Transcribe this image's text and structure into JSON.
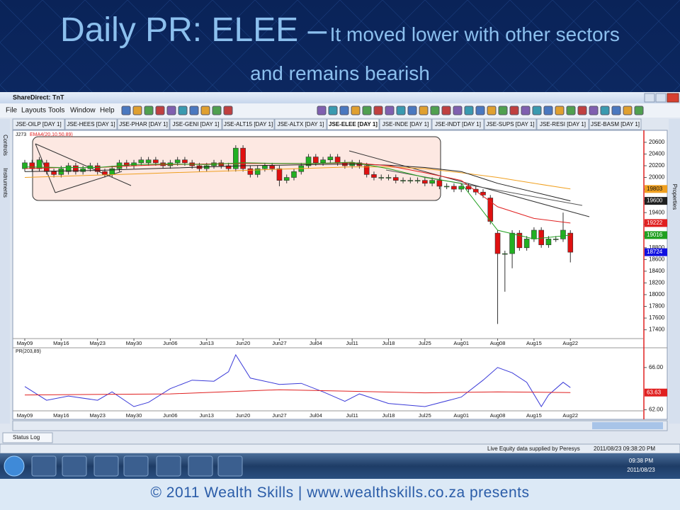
{
  "slide": {
    "title": "Daily PR: ELEE –",
    "headline": "It moved lower with other sectors and remains bearish",
    "footer": "© 2011 Wealth Skills | www.wealthskills.co.za presents"
  },
  "window": {
    "title": "ShareDirect: TnT",
    "menu": [
      "File",
      "Layouts",
      "Tools",
      "Window",
      "Help"
    ],
    "tabs": [
      "JSE-OILP [DAY 1]",
      "JSE-HEES [DAY 1]",
      "JSE-PHAR [DAY 1]",
      "JSE-GENI [DAY 1]",
      "JSE-ALT15 [DAY 1]",
      "JSE-ALTX [DAY 1]",
      "JSE-ELEE [DAY 1]",
      "JSE-INDE [DAY 1]",
      "JSE-INDT [DAY 1]",
      "JSE-SUPS [DAY 1]",
      "JSE-RESI [DAY 1]",
      "JSE-BASM [DAY 1]"
    ],
    "side_tabs": [
      "Controls",
      "Instruments"
    ],
    "right_tab": "Properties",
    "status_tab": "Status Log",
    "status_text": "Live Equity data supplied by Peresys",
    "status_time": "2011/08/23 09:38:20 PM"
  },
  "taskbar": {
    "time": "09:38 PM",
    "date": "2011/08/23"
  },
  "chart_data": [
    {
      "type": "candlestick",
      "label": "J273",
      "indicator": "EMA4(20,10,50,89)",
      "categories": [
        "May09",
        null,
        null,
        null,
        null,
        "May16",
        null,
        null,
        null,
        null,
        "May23",
        null,
        null,
        null,
        null,
        "May30",
        null,
        null,
        null,
        null,
        "Jun06",
        null,
        null,
        null,
        null,
        "Jun13",
        null,
        null,
        null,
        null,
        "Jun20",
        null,
        null,
        null,
        null,
        "Jun27",
        null,
        null,
        null,
        null,
        "Jul04",
        null,
        null,
        null,
        null,
        "Jul11",
        null,
        null,
        null,
        null,
        "Jul18",
        null,
        null,
        null,
        null,
        "Jul25",
        null,
        null,
        null,
        null,
        "Aug01",
        null,
        null,
        null,
        null,
        "Aug08",
        null,
        null,
        null,
        null,
        "Aug15",
        null,
        null,
        null,
        null,
        "Aug22"
      ],
      "open": [
        20150,
        20250,
        20150,
        20250,
        20100,
        20050,
        20100,
        20200,
        20100,
        20150,
        20200,
        20100,
        20050,
        20150,
        20250,
        20200,
        20250,
        20250,
        20300,
        20250,
        20200,
        20250,
        20300,
        20250,
        20200,
        20150,
        20200,
        20250,
        20200,
        20150,
        20500,
        20150,
        20050,
        20150,
        20200,
        20150,
        19950,
        20000,
        20100,
        20200,
        20350,
        20250,
        20300,
        20350,
        20250,
        20200,
        20250,
        20200,
        20050,
        20000,
        20000,
        20000,
        19950,
        19950,
        19950,
        19950,
        19900,
        19950,
        19850,
        19850,
        19800,
        19850,
        19800,
        19750,
        19650,
        19050,
        18700,
        18700,
        19050,
        18800,
        18950,
        19100,
        18850,
        18950,
        18950,
        19050
      ],
      "high": [
        20300,
        20300,
        20350,
        20300,
        20150,
        20200,
        20250,
        20250,
        20200,
        20250,
        20250,
        20150,
        20200,
        20300,
        20300,
        20300,
        20350,
        20350,
        20350,
        20300,
        20300,
        20350,
        20350,
        20300,
        20250,
        20250,
        20300,
        20300,
        20250,
        20550,
        20550,
        20200,
        20200,
        20250,
        20250,
        20200,
        20050,
        20150,
        20250,
        20400,
        20400,
        20350,
        20400,
        20400,
        20300,
        20300,
        20300,
        20250,
        20100,
        20050,
        20050,
        20050,
        20000,
        20000,
        20000,
        20000,
        20000,
        20000,
        19900,
        19900,
        19900,
        19900,
        19850,
        19800,
        19700,
        19100,
        18750,
        19100,
        19100,
        19000,
        19150,
        19150,
        19000,
        19000,
        19400,
        19100
      ],
      "low": [
        20100,
        20100,
        20100,
        20050,
        20000,
        20000,
        20050,
        20050,
        20050,
        20100,
        20050,
        20000,
        20000,
        20100,
        20150,
        20150,
        20200,
        20200,
        20200,
        20150,
        20150,
        20200,
        20200,
        20150,
        20100,
        20100,
        20150,
        20150,
        20100,
        20100,
        20100,
        20000,
        20000,
        20100,
        20100,
        19850,
        19900,
        19950,
        20050,
        20150,
        20200,
        20200,
        20250,
        20200,
        20150,
        20150,
        20150,
        20000,
        19950,
        19950,
        19950,
        19900,
        19900,
        19900,
        19900,
        19850,
        19850,
        19800,
        19800,
        19750,
        19750,
        19750,
        19700,
        19650,
        19200,
        17500,
        18050,
        18450,
        18750,
        18750,
        18900,
        18800,
        18800,
        18900,
        18900,
        18550
      ],
      "close": [
        20250,
        20150,
        20300,
        20100,
        20050,
        20150,
        20200,
        20100,
        20150,
        20200,
        20100,
        20050,
        20150,
        20250,
        20200,
        20250,
        20300,
        20300,
        20250,
        20200,
        20250,
        20300,
        20250,
        20200,
        20150,
        20200,
        20250,
        20200,
        20150,
        20500,
        20150,
        20050,
        20150,
        20200,
        20150,
        19950,
        20000,
        20100,
        20200,
        20350,
        20250,
        20300,
        20350,
        20250,
        20200,
        20250,
        20200,
        20050,
        20000,
        20000,
        20000,
        19950,
        19950,
        19950,
        19950,
        19900,
        19950,
        19850,
        19850,
        19800,
        19850,
        19800,
        19750,
        19700,
        19250,
        18700,
        18700,
        19050,
        18800,
        18950,
        19100,
        18850,
        18950,
        18950,
        19100,
        18724
      ],
      "up_color": "#22b022",
      "down_color": "#e01010",
      "close_label_color": "#1010e0",
      "overlays": [
        {
          "color": "#f0a020",
          "x": [
            0,
            5,
            10,
            15,
            20,
            25,
            30,
            35,
            40,
            45,
            50,
            55,
            60,
            65,
            70,
            75
          ],
          "values": [
            20000,
            20020,
            20040,
            20060,
            20080,
            20100,
            20120,
            20140,
            20160,
            20180,
            20180,
            20150,
            20080,
            20000,
            19900,
            19803
          ]
        },
        {
          "color": "#202020",
          "x": [
            0,
            5,
            10,
            15,
            20,
            25,
            30,
            35,
            40,
            45,
            50,
            55,
            60,
            65,
            70,
            75
          ],
          "values": [
            20100,
            20110,
            20120,
            20140,
            20160,
            20180,
            20200,
            20210,
            20220,
            20230,
            20210,
            20170,
            20100,
            19900,
            19750,
            19600
          ]
        },
        {
          "color": "#e02020",
          "x": [
            0,
            5,
            10,
            15,
            20,
            25,
            30,
            35,
            40,
            45,
            50,
            55,
            60,
            65,
            70,
            75
          ],
          "values": [
            20150,
            20170,
            20170,
            20200,
            20220,
            20230,
            20240,
            20240,
            20240,
            20250,
            20200,
            20080,
            19950,
            19500,
            19300,
            19222
          ]
        },
        {
          "color": "#20a020",
          "x": [
            0,
            5,
            10,
            15,
            20,
            25,
            30,
            35,
            40,
            45,
            50,
            55,
            60,
            65,
            70,
            75
          ],
          "values": [
            20180,
            20170,
            20170,
            20220,
            20230,
            20220,
            20250,
            20240,
            20240,
            20260,
            20150,
            20000,
            19900,
            19100,
            18950,
            19016
          ]
        }
      ],
      "ylim": [
        17250,
        20780
      ],
      "yticks": [
        17400,
        17600,
        17800,
        18000,
        18200,
        18400,
        18600,
        18800,
        19000,
        19200,
        19400,
        19600,
        19800,
        20000,
        20200,
        20400,
        20600
      ]
    },
    {
      "type": "line",
      "label": "PR(203,89)",
      "series": [
        {
          "color": "#3a3ad8",
          "x": [
            0,
            3,
            6,
            10,
            12,
            15,
            17,
            20,
            23,
            26,
            28,
            29,
            31,
            35,
            38,
            41,
            44,
            46,
            50,
            55,
            60,
            63,
            65,
            67,
            69,
            71,
            72,
            74,
            75
          ],
          "values": [
            64.2,
            62.9,
            63.3,
            62.9,
            63.7,
            62.3,
            62.7,
            64.0,
            64.8,
            64.7,
            65.6,
            67.2,
            65.0,
            64.4,
            64.5,
            63.7,
            62.8,
            63.5,
            62.6,
            62.3,
            63.2,
            64.8,
            66.0,
            65.5,
            64.6,
            62.3,
            63.4,
            64.6,
            64.1
          ]
        },
        {
          "color": "#e02020",
          "x": [
            0,
            20,
            35,
            55,
            65,
            75
          ],
          "values": [
            63.4,
            63.5,
            63.9,
            63.6,
            63.7,
            63.63
          ]
        }
      ],
      "ylim": [
        61.9,
        67.8
      ],
      "yticks": [
        {
          "value": 62,
          "label": "62.00"
        },
        {
          "value": 66,
          "label": "66.00"
        }
      ]
    }
  ]
}
